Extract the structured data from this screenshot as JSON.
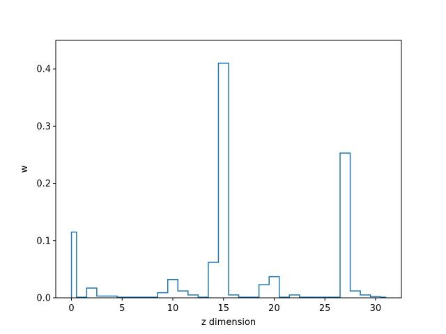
{
  "chart_data": {
    "type": "line",
    "style": "step-histogram",
    "title": "",
    "xlabel": "z dimension",
    "ylabel": "w",
    "xlim": [
      -1.55,
      32.55
    ],
    "ylim": [
      0,
      0.45
    ],
    "xticks": [
      0,
      5,
      10,
      15,
      20,
      25,
      30
    ],
    "yticks": [
      0.0,
      0.1,
      0.2,
      0.3,
      0.4
    ],
    "ytick_labels": [
      "0.0",
      "0.1",
      "0.2",
      "0.3",
      "0.4"
    ],
    "grid": false,
    "series": [
      {
        "color": "#1f77b4",
        "x": [
          0,
          1,
          2,
          3,
          4,
          5,
          6,
          7,
          8,
          9,
          10,
          11,
          12,
          13,
          14,
          15,
          16,
          17,
          18,
          19,
          20,
          21,
          22,
          23,
          24,
          25,
          26,
          27,
          28,
          29,
          30,
          31
        ],
        "values": [
          0.115,
          0.001,
          0.017,
          0.003,
          0.003,
          0.001,
          0.001,
          0.001,
          0.001,
          0.009,
          0.032,
          0.012,
          0.005,
          0.001,
          0.062,
          0.41,
          0.005,
          0.001,
          0.001,
          0.023,
          0.037,
          0.001,
          0.005,
          0.001,
          0.001,
          0.001,
          0.001,
          0.253,
          0.012,
          0.005,
          0.002,
          0.001
        ]
      }
    ]
  }
}
